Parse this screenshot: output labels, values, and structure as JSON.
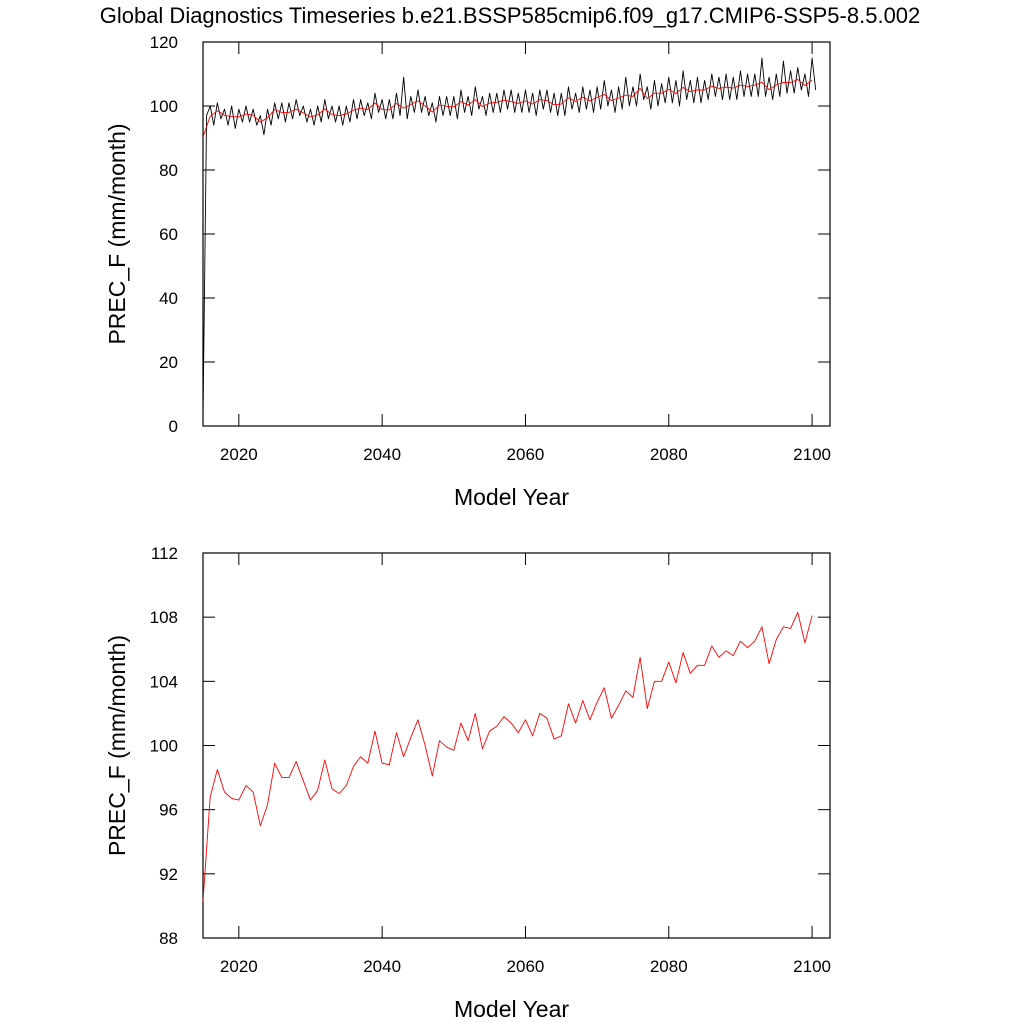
{
  "chart_data": [
    {
      "type": "line",
      "title": "Global Diagnostics Timeseries b.e21.BSSP585cmip6.f09_g17.CMIP6-SSP5-8.5.002",
      "xlabel": "Model Year",
      "ylabel": "PREC_F (mm/month)",
      "xlim": [
        2015,
        2102.5
      ],
      "ylim": [
        0,
        120
      ],
      "xticks": [
        2020,
        2040,
        2060,
        2080,
        2100
      ],
      "yticks": [
        0,
        20,
        40,
        60,
        80,
        100,
        120
      ],
      "series": [
        {
          "color": "#000000",
          "x": [
            2015,
            2015.5,
            2016,
            2016.5,
            2017,
            2017.5,
            2018,
            2018.5,
            2019,
            2019.5,
            2020,
            2020.5,
            2021,
            2021.5,
            2022,
            2022.5,
            2023,
            2023.5,
            2024,
            2024.5,
            2025,
            2025.5,
            2026,
            2026.5,
            2027,
            2027.5,
            2028,
            2028.5,
            2029,
            2029.5,
            2030,
            2030.5,
            2031,
            2031.5,
            2032,
            2032.5,
            2033,
            2033.5,
            2034,
            2034.5,
            2035,
            2035.5,
            2036,
            2036.5,
            2037,
            2037.5,
            2038,
            2038.5,
            2039,
            2039.5,
            2040,
            2040.5,
            2041,
            2041.5,
            2042,
            2042.5,
            2043,
            2043.5,
            2044,
            2044.5,
            2045,
            2045.5,
            2046,
            2046.5,
            2047,
            2047.5,
            2048,
            2048.5,
            2049,
            2049.5,
            2050,
            2050.5,
            2051,
            2051.5,
            2052,
            2052.5,
            2053,
            2053.5,
            2054,
            2054.5,
            2055,
            2055.5,
            2056,
            2056.5,
            2057,
            2057.5,
            2058,
            2058.5,
            2059,
            2059.5,
            2060,
            2060.5,
            2061,
            2061.5,
            2062,
            2062.5,
            2063,
            2063.5,
            2064,
            2064.5,
            2065,
            2065.5,
            2066,
            2066.5,
            2067,
            2067.5,
            2068,
            2068.5,
            2069,
            2069.5,
            2070,
            2070.5,
            2071,
            2071.5,
            2072,
            2072.5,
            2073,
            2073.5,
            2074,
            2074.5,
            2075,
            2075.5,
            2076,
            2076.5,
            2077,
            2077.5,
            2078,
            2078.5,
            2079,
            2079.5,
            2080,
            2080.5,
            2081,
            2081.5,
            2082,
            2082.5,
            2083,
            2083.5,
            2084,
            2084.5,
            2085,
            2085.5,
            2086,
            2086.5,
            2087,
            2087.5,
            2088,
            2088.5,
            2089,
            2089.5,
            2090,
            2090.5,
            2091,
            2091.5,
            2092,
            2092.5,
            2093,
            2093.5,
            2094,
            2094.5,
            2095,
            2095.5,
            2096,
            2096.5,
            2097,
            2097.5,
            2098,
            2098.5,
            2099,
            2099.5,
            2100,
            2100.5
          ],
          "values": [
            3,
            97,
            100,
            94,
            101,
            96,
            99,
            94,
            100,
            93,
            99,
            95,
            100,
            95,
            99,
            94,
            97,
            91,
            99,
            94,
            101,
            96,
            101,
            95,
            101,
            96,
            102,
            97,
            100,
            95,
            99,
            94,
            100,
            95,
            102,
            96,
            100,
            95,
            100,
            94,
            100,
            95,
            102,
            96,
            102,
            97,
            101,
            96,
            104,
            98,
            102,
            96,
            102,
            96,
            104,
            97,
            109,
            96,
            103,
            98,
            105,
            98,
            103,
            97,
            101,
            95,
            103,
            97,
            103,
            97,
            103,
            96,
            105,
            98,
            103,
            97,
            106,
            99,
            103,
            97,
            104,
            98,
            104,
            98,
            105,
            99,
            105,
            98,
            104,
            98,
            105,
            98,
            104,
            97,
            105,
            99,
            105,
            98,
            104,
            97,
            104,
            97,
            106,
            99,
            104,
            98,
            106,
            99,
            105,
            98,
            106,
            99,
            108,
            100,
            105,
            98,
            106,
            99,
            109,
            100,
            106,
            100,
            110,
            102,
            106,
            99,
            108,
            100,
            107,
            101,
            109,
            101,
            108,
            100,
            111,
            102,
            108,
            101,
            109,
            101,
            108,
            102,
            110,
            103,
            109,
            102,
            110,
            102,
            109,
            102,
            111,
            103,
            110,
            103,
            110,
            103,
            115,
            103,
            109,
            102,
            110,
            103,
            114,
            104,
            111,
            104,
            112,
            105,
            110,
            103,
            115,
            105
          ]
        },
        {
          "color": "#ff0000",
          "x": [
            2015,
            2016,
            2017,
            2018,
            2019,
            2020,
            2021,
            2022,
            2023,
            2024,
            2025,
            2026,
            2027,
            2028,
            2029,
            2030,
            2031,
            2032,
            2033,
            2034,
            2035,
            2036,
            2037,
            2038,
            2039,
            2040,
            2041,
            2042,
            2043,
            2044,
            2045,
            2046,
            2047,
            2048,
            2049,
            2050,
            2051,
            2052,
            2053,
            2054,
            2055,
            2056,
            2057,
            2058,
            2059,
            2060,
            2061,
            2062,
            2063,
            2064,
            2065,
            2066,
            2067,
            2068,
            2069,
            2070,
            2071,
            2072,
            2073,
            2074,
            2075,
            2076,
            2077,
            2078,
            2079,
            2080,
            2081,
            2082,
            2083,
            2084,
            2085,
            2086,
            2087,
            2088,
            2089,
            2090,
            2091,
            2092,
            2093,
            2094,
            2095,
            2096,
            2097,
            2098,
            2099,
            2100
          ],
          "values": [
            90.3,
            96.8,
            98.5,
            97.1,
            96.7,
            96.6,
            97.5,
            97.1,
            95.0,
            96.3,
            98.9,
            98.0,
            98.0,
            99.0,
            97.8,
            96.6,
            97.2,
            99.1,
            97.3,
            97.0,
            97.5,
            98.7,
            99.3,
            98.9,
            100.9,
            98.9,
            98.8,
            100.8,
            99.3,
            100.5,
            101.6,
            100.0,
            98.1,
            100.3,
            99.9,
            99.7,
            101.4,
            100.3,
            102.0,
            99.8,
            100.9,
            101.2,
            101.8,
            101.4,
            100.8,
            101.6,
            100.6,
            102.0,
            101.7,
            100.4,
            100.6,
            102.6,
            101.4,
            102.8,
            101.6,
            102.7,
            103.6,
            101.7,
            102.5,
            103.4,
            103.0,
            105.5,
            102.3,
            104.0,
            104.0,
            105.2,
            103.9,
            105.8,
            104.5,
            105.0,
            105.0,
            106.2,
            105.5,
            105.9,
            105.6,
            106.5,
            106.1,
            106.5,
            107.4,
            105.1,
            106.6,
            107.4,
            107.3,
            108.3,
            106.4,
            108.1
          ]
        }
      ]
    },
    {
      "type": "line",
      "xlabel": "Model Year",
      "ylabel": "PREC_F (mm/month)",
      "xlim": [
        2015,
        2102.5
      ],
      "ylim": [
        88,
        112
      ],
      "xticks": [
        2020,
        2040,
        2060,
        2080,
        2100
      ],
      "yticks": [
        88,
        92,
        96,
        100,
        104,
        108,
        112
      ],
      "series": [
        {
          "color": "#ff0000",
          "x": [
            2015,
            2016,
            2017,
            2018,
            2019,
            2020,
            2021,
            2022,
            2023,
            2024,
            2025,
            2026,
            2027,
            2028,
            2029,
            2030,
            2031,
            2032,
            2033,
            2034,
            2035,
            2036,
            2037,
            2038,
            2039,
            2040,
            2041,
            2042,
            2043,
            2044,
            2045,
            2046,
            2047,
            2048,
            2049,
            2050,
            2051,
            2052,
            2053,
            2054,
            2055,
            2056,
            2057,
            2058,
            2059,
            2060,
            2061,
            2062,
            2063,
            2064,
            2065,
            2066,
            2067,
            2068,
            2069,
            2070,
            2071,
            2072,
            2073,
            2074,
            2075,
            2076,
            2077,
            2078,
            2079,
            2080,
            2081,
            2082,
            2083,
            2084,
            2085,
            2086,
            2087,
            2088,
            2089,
            2090,
            2091,
            2092,
            2093,
            2094,
            2095,
            2096,
            2097,
            2098,
            2099,
            2100
          ],
          "values": [
            90.3,
            96.8,
            98.5,
            97.1,
            96.7,
            96.6,
            97.5,
            97.1,
            95.0,
            96.3,
            98.9,
            98.0,
            98.0,
            99.0,
            97.8,
            96.6,
            97.2,
            99.1,
            97.3,
            97.0,
            97.5,
            98.7,
            99.3,
            98.9,
            100.9,
            98.9,
            98.8,
            100.8,
            99.3,
            100.5,
            101.6,
            100.0,
            98.1,
            100.3,
            99.9,
            99.7,
            101.4,
            100.3,
            102.0,
            99.8,
            100.9,
            101.2,
            101.8,
            101.4,
            100.8,
            101.6,
            100.6,
            102.0,
            101.7,
            100.4,
            100.6,
            102.6,
            101.4,
            102.8,
            101.6,
            102.7,
            103.6,
            101.7,
            102.5,
            103.4,
            103.0,
            105.5,
            102.3,
            104.0,
            104.0,
            105.2,
            103.9,
            105.8,
            104.5,
            105.0,
            105.0,
            106.2,
            105.5,
            105.9,
            105.6,
            106.5,
            106.1,
            106.5,
            107.4,
            105.1,
            106.6,
            107.4,
            107.3,
            108.3,
            106.4,
            108.1
          ]
        }
      ]
    }
  ]
}
